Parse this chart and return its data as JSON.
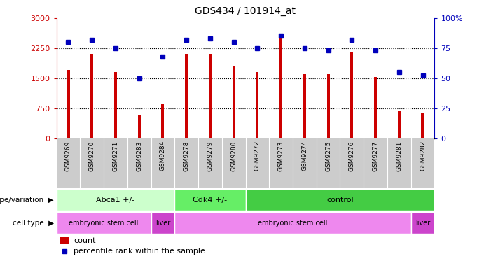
{
  "title": "GDS434 / 101914_at",
  "samples": [
    "GSM9269",
    "GSM9270",
    "GSM9271",
    "GSM9283",
    "GSM9284",
    "GSM9278",
    "GSM9279",
    "GSM9280",
    "GSM9272",
    "GSM9273",
    "GSM9274",
    "GSM9275",
    "GSM9276",
    "GSM9277",
    "GSM9281",
    "GSM9282"
  ],
  "counts": [
    1700,
    2100,
    1650,
    580,
    870,
    2100,
    2100,
    1800,
    1650,
    2600,
    1600,
    1600,
    2150,
    1530,
    700,
    630
  ],
  "percentiles": [
    80,
    82,
    75,
    50,
    68,
    82,
    83,
    80,
    75,
    85,
    75,
    73,
    82,
    73,
    55,
    52
  ],
  "bar_color": "#cc0000",
  "dot_color": "#0000bb",
  "ylim_left": [
    0,
    3000
  ],
  "ylim_right": [
    0,
    100
  ],
  "yticks_left": [
    0,
    750,
    1500,
    2250,
    3000
  ],
  "yticks_right": [
    0,
    25,
    50,
    75,
    100
  ],
  "ytick_labels_left": [
    "0",
    "750",
    "1500",
    "2250",
    "3000"
  ],
  "ytick_labels_right": [
    "0",
    "25",
    "50",
    "75",
    "100%"
  ],
  "hlines": [
    750,
    1500,
    2250
  ],
  "genotype_groups": [
    {
      "label": "Abca1 +/-",
      "start": 0,
      "end": 5,
      "color": "#ccffcc"
    },
    {
      "label": "Cdk4 +/-",
      "start": 5,
      "end": 8,
      "color": "#66ee66"
    },
    {
      "label": "control",
      "start": 8,
      "end": 16,
      "color": "#44cc44"
    }
  ],
  "celltype_groups": [
    {
      "label": "embryonic stem cell",
      "start": 0,
      "end": 4,
      "color": "#ee88ee"
    },
    {
      "label": "liver",
      "start": 4,
      "end": 5,
      "color": "#cc44cc"
    },
    {
      "label": "embryonic stem cell",
      "start": 5,
      "end": 15,
      "color": "#ee88ee"
    },
    {
      "label": "liver",
      "start": 15,
      "end": 16,
      "color": "#cc44cc"
    }
  ],
  "xtick_bg_color": "#cccccc",
  "background_color": "#ffffff"
}
